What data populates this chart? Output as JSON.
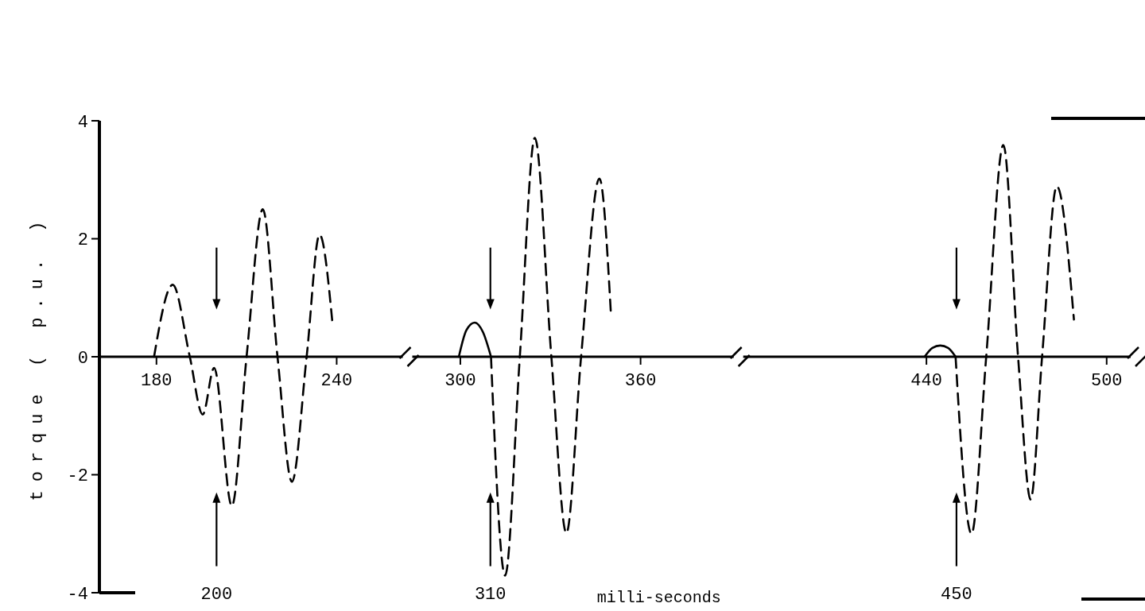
{
  "chart_data": [
    {
      "type": "line",
      "ylabel": "torque ( p.u. )",
      "xlim": [
        161,
        262
      ],
      "xticks": [
        180,
        240
      ],
      "ylim": [
        -4,
        4
      ],
      "yticks": [
        -4,
        -2,
        0,
        2,
        4
      ],
      "grid": false,
      "marker": "none",
      "series": [
        {
          "color": "#000000",
          "line_style": "dashed",
          "x": [
            179.2,
            185.4,
            191.1,
            195.4,
            199.2,
            205.1,
            210,
            215.4,
            220.3,
            225.1,
            230,
            234.3,
            238.6
          ],
          "values": [
            0,
            1.22,
            0,
            -0.98,
            -0.19,
            -2.53,
            0,
            2.5,
            0,
            -2.12,
            0,
            2.07,
            0.57
          ]
        }
      ],
      "ref_lines": [
        {
          "axis": "x",
          "value": 200,
          "label": "200"
        }
      ]
    },
    {
      "type": "line",
      "xlabel": "milli-seconds",
      "xlim": [
        284,
        391
      ],
      "xticks": [
        300,
        360
      ],
      "ylim": [
        -4,
        4
      ],
      "tick_labels": "x",
      "grid": false,
      "marker": "none",
      "series": [
        {
          "color": "#000000",
          "line_style": "solid",
          "x": [
            299.5,
            302,
            304.8,
            307.5,
            310.2
          ],
          "values": [
            0,
            0.45,
            0.58,
            0.42,
            0
          ]
        },
        {
          "color": "#000000",
          "line_style": "dashed",
          "x": [
            310.2,
            314.9,
            319.8,
            324.8,
            330.3,
            335.3,
            340.2,
            346.3,
            350.1
          ],
          "values": [
            0,
            -3.71,
            0,
            3.71,
            0,
            -2.99,
            0,
            3.02,
            0.75
          ]
        }
      ],
      "ref_lines": [
        {
          "axis": "x",
          "value": 310,
          "label": "310"
        }
      ]
    },
    {
      "type": "line",
      "xlim": [
        379,
        508
      ],
      "xticks": [
        440,
        500
      ],
      "ylim": [
        -4,
        4
      ],
      "tick_labels": "x",
      "grid": false,
      "marker": "none",
      "series": [
        {
          "color": "#000000",
          "line_style": "solid",
          "x": [
            439.4,
            442,
            444.6,
            447.2,
            449.7
          ],
          "values": [
            0,
            0.15,
            0.19,
            0.15,
            0
          ]
        },
        {
          "color": "#000000",
          "line_style": "dashed",
          "x": [
            449.7,
            455,
            459.9,
            465.6,
            470.5,
            474.7,
            478.5,
            483.4,
            489.1
          ],
          "values": [
            0,
            -3.0,
            0,
            3.59,
            0,
            -2.42,
            0,
            2.89,
            0.63
          ]
        }
      ],
      "ref_lines": [
        {
          "axis": "x",
          "value": 450,
          "label": "450"
        }
      ]
    }
  ]
}
